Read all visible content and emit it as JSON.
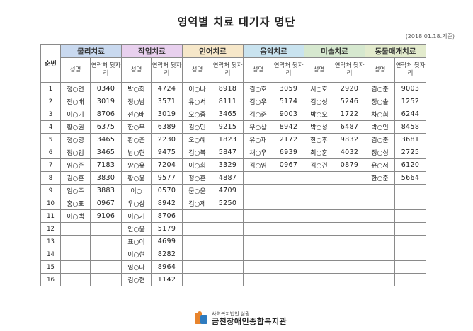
{
  "title": "영역별 치료 대기자 명단",
  "date": "(2018.01.18.기준)",
  "seq_header": "순번",
  "name_header": "성명",
  "phone_header": "연락처 뒷자리",
  "groups": [
    {
      "label": "물리치료",
      "color": "#c9d9ef"
    },
    {
      "label": "작업치료",
      "color": "#e8d0ee"
    },
    {
      "label": "언어치료",
      "color": "#f6e7c9"
    },
    {
      "label": "음악치료",
      "color": "#c9e3ef"
    },
    {
      "label": "미술치료",
      "color": "#d6e8cf"
    },
    {
      "label": "동물매개치료",
      "color": "#e3ebcd"
    }
  ],
  "rows": [
    {
      "n": "1",
      "c": [
        [
          "정○연",
          "0340"
        ],
        [
          "박○희",
          "4724"
        ],
        [
          "이○나",
          "8918"
        ],
        [
          "김○호",
          "3059"
        ],
        [
          "서○호",
          "2920"
        ],
        [
          "김○준",
          "9003"
        ]
      ]
    },
    {
      "n": "2",
      "c": [
        [
          "전○배",
          "3019"
        ],
        [
          "정○남",
          "3571"
        ],
        [
          "유○서",
          "8111"
        ],
        [
          "김○우",
          "5174"
        ],
        [
          "김○성",
          "5246"
        ],
        [
          "정○솔",
          "1252"
        ]
      ]
    },
    {
      "n": "3",
      "c": [
        [
          "이○기",
          "8706"
        ],
        [
          "전○배",
          "3019"
        ],
        [
          "오○중",
          "3465"
        ],
        [
          "김○준",
          "9003"
        ],
        [
          "박○오",
          "1722"
        ],
        [
          "차○희",
          "6244"
        ]
      ]
    },
    {
      "n": "4",
      "c": [
        [
          "황○권",
          "6375"
        ],
        [
          "한○무",
          "6389"
        ],
        [
          "김○민",
          "9215"
        ],
        [
          "우○상",
          "8942"
        ],
        [
          "박○성",
          "6487"
        ],
        [
          "박○인",
          "8458"
        ]
      ]
    },
    {
      "n": "5",
      "c": [
        [
          "정○영",
          "3465"
        ],
        [
          "황○준",
          "2230"
        ],
        [
          "오○혜",
          "1823"
        ],
        [
          "유○재",
          "2172"
        ],
        [
          "한○후",
          "9832"
        ],
        [
          "김○준",
          "3681"
        ]
      ]
    },
    {
      "n": "6",
      "c": [
        [
          "정○임",
          "3465"
        ],
        [
          "남○현",
          "9475"
        ],
        [
          "김○북",
          "5847"
        ],
        [
          "채○우",
          "6939"
        ],
        [
          "최○훈",
          "4032"
        ],
        [
          "정○성",
          "2725"
        ]
      ]
    },
    {
      "n": "7",
      "c": [
        [
          "임○준",
          "7183"
        ],
        [
          "양○유",
          "7204"
        ],
        [
          "이○희",
          "3329"
        ],
        [
          "김○임",
          "0967"
        ],
        [
          "김○건",
          "0879"
        ],
        [
          "유○서",
          "6120"
        ]
      ]
    },
    {
      "n": "8",
      "c": [
        [
          "김○훈",
          "3830"
        ],
        [
          "황○윤",
          "9577"
        ],
        [
          "정○훈",
          "4887"
        ],
        [
          "",
          ""
        ],
        [
          "",
          ""
        ],
        [
          "한○준",
          "5664"
        ]
      ]
    },
    {
      "n": "9",
      "c": [
        [
          "임○주",
          "3883"
        ],
        [
          "이○",
          "0570"
        ],
        [
          "문○윤",
          "4709"
        ],
        [
          "",
          ""
        ],
        [
          "",
          ""
        ],
        [
          "",
          ""
        ]
      ]
    },
    {
      "n": "10",
      "c": [
        [
          "홍○표",
          "0967"
        ],
        [
          "우○상",
          "8942"
        ],
        [
          "김○제",
          "5250"
        ],
        [
          "",
          ""
        ],
        [
          "",
          ""
        ],
        [
          "",
          ""
        ]
      ]
    },
    {
      "n": "11",
      "c": [
        [
          "이○백",
          "9106"
        ],
        [
          "이○기",
          "8706"
        ],
        [
          "",
          ""
        ],
        [
          "",
          ""
        ],
        [
          "",
          ""
        ],
        [
          "",
          ""
        ]
      ]
    },
    {
      "n": "12",
      "c": [
        [
          "",
          ""
        ],
        [
          "안○윤",
          "5179"
        ],
        [
          "",
          ""
        ],
        [
          "",
          ""
        ],
        [
          "",
          ""
        ],
        [
          "",
          ""
        ]
      ]
    },
    {
      "n": "13",
      "c": [
        [
          "",
          ""
        ],
        [
          "표○이",
          "4699"
        ],
        [
          "",
          ""
        ],
        [
          "",
          ""
        ],
        [
          "",
          ""
        ],
        [
          "",
          ""
        ]
      ]
    },
    {
      "n": "14",
      "c": [
        [
          "",
          ""
        ],
        [
          "이○현",
          "8282"
        ],
        [
          "",
          ""
        ],
        [
          "",
          ""
        ],
        [
          "",
          ""
        ],
        [
          "",
          ""
        ]
      ]
    },
    {
      "n": "15",
      "c": [
        [
          "",
          ""
        ],
        [
          "임○나",
          "8964"
        ],
        [
          "",
          ""
        ],
        [
          "",
          ""
        ],
        [
          "",
          ""
        ],
        [
          "",
          ""
        ]
      ]
    },
    {
      "n": "16",
      "c": [
        [
          "",
          ""
        ],
        [
          "김○현",
          "1142"
        ],
        [
          "",
          ""
        ],
        [
          "",
          ""
        ],
        [
          "",
          ""
        ],
        [
          "",
          ""
        ]
      ]
    }
  ],
  "footer": {
    "org_small": "사회복지법인 삼광",
    "org_name": "금천장애인종합복지관",
    "logo_icon": "orange-blue-person-logo"
  }
}
